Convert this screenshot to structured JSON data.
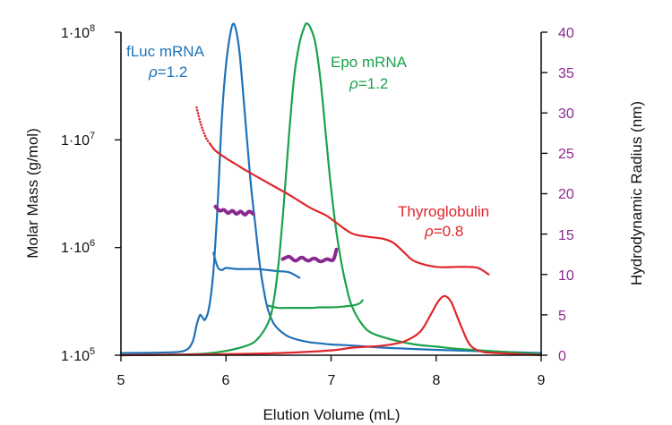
{
  "chart_data": {
    "type": "line",
    "title": "",
    "xlabel": "Elution Volume (mL)",
    "ylabel": "Molar Mass (g/mol)",
    "y2label": "Hydrodynamic Radius (nm)",
    "xlim": [
      5,
      9
    ],
    "ylim_log10": [
      5,
      8
    ],
    "y2lim": [
      0,
      40
    ],
    "x_ticks": [
      "5",
      "6",
      "7",
      "8",
      "9"
    ],
    "y_ticks": [
      {
        "base": "1·10",
        "exp": "5"
      },
      {
        "base": "1·10",
        "exp": "6"
      },
      {
        "base": "1·10",
        "exp": "7"
      },
      {
        "base": "1·10",
        "exp": "8"
      }
    ],
    "y2_ticks": [
      "0",
      "5",
      "10",
      "15",
      "20",
      "25",
      "30",
      "35",
      "40"
    ],
    "colors": {
      "fluc": "#1f72b8",
      "epo": "#1aa24b",
      "thyro": "#e0262b",
      "radius": "#8b2a8e",
      "axis": "#111111"
    },
    "annotations": {
      "fluc": {
        "name": "fLuc mRNA",
        "rho_symbol": "ρ",
        "rho_value": "=1.2"
      },
      "epo": {
        "name": "Epo mRNA",
        "rho_symbol": "ρ",
        "rho_value": "=1.2"
      },
      "thyro": {
        "name": "Thyroglobulin",
        "rho_symbol": "ρ",
        "rho_value": "=0.8"
      }
    },
    "series": [
      {
        "name": "fLuc mRNA detector signal",
        "axis": "y_left_log",
        "color_key": "fluc",
        "dotted": false,
        "x": [
          5.0,
          5.4,
          5.6,
          5.68,
          5.72,
          5.75,
          5.77,
          5.8,
          5.84,
          5.88,
          5.92,
          5.96,
          6.0,
          6.04,
          6.07,
          6.1,
          6.13,
          6.17,
          6.2,
          6.24,
          6.28,
          6.32,
          6.36,
          6.4,
          6.45,
          6.5,
          6.55,
          6.6,
          6.7,
          6.8,
          6.9,
          7.0,
          7.2,
          7.5,
          8.0,
          8.5,
          9.0
        ],
        "y": [
          5.02,
          5.025,
          5.04,
          5.12,
          5.28,
          5.37,
          5.36,
          5.33,
          5.45,
          5.78,
          6.4,
          7.2,
          7.7,
          7.98,
          8.08,
          8.0,
          7.8,
          7.35,
          7.0,
          6.55,
          6.2,
          5.85,
          5.6,
          5.42,
          5.3,
          5.24,
          5.2,
          5.17,
          5.14,
          5.12,
          5.11,
          5.1,
          5.09,
          5.07,
          5.05,
          5.035,
          5.02
        ]
      },
      {
        "name": "fLuc mRNA molar mass",
        "axis": "y_left_log",
        "color_key": "fluc",
        "dotted": false,
        "x": [
          5.88,
          5.92,
          5.96,
          6.0,
          6.1,
          6.2,
          6.3,
          6.4,
          6.5,
          6.6,
          6.7
        ],
        "y": [
          5.95,
          5.82,
          5.79,
          5.81,
          5.8,
          5.8,
          5.8,
          5.79,
          5.78,
          5.77,
          5.72
        ]
      },
      {
        "name": "Epo mRNA detector signal",
        "axis": "y_left_log",
        "color_key": "epo",
        "dotted": false,
        "x": [
          5.0,
          5.5,
          5.8,
          6.0,
          6.2,
          6.3,
          6.4,
          6.45,
          6.5,
          6.55,
          6.6,
          6.65,
          6.7,
          6.75,
          6.77,
          6.8,
          6.85,
          6.9,
          6.95,
          7.0,
          7.05,
          7.1,
          7.15,
          7.2,
          7.3,
          7.4,
          7.6,
          7.8,
          8.0,
          8.2,
          8.5,
          9.0
        ],
        "y": [
          5.0,
          5.005,
          5.015,
          5.04,
          5.09,
          5.15,
          5.3,
          5.48,
          5.85,
          6.4,
          7.05,
          7.6,
          7.9,
          8.06,
          8.08,
          8.05,
          7.9,
          7.55,
          7.05,
          6.55,
          6.15,
          5.85,
          5.62,
          5.45,
          5.28,
          5.2,
          5.14,
          5.1,
          5.08,
          5.06,
          5.04,
          5.01
        ]
      },
      {
        "name": "Epo mRNA molar mass",
        "axis": "y_left_log",
        "color_key": "epo",
        "dotted": false,
        "x": [
          6.4,
          6.5,
          6.6,
          6.7,
          6.8,
          6.9,
          7.0,
          7.1,
          7.2,
          7.27,
          7.3
        ],
        "y": [
          5.46,
          5.44,
          5.44,
          5.44,
          5.44,
          5.445,
          5.445,
          5.45,
          5.46,
          5.48,
          5.51
        ]
      },
      {
        "name": "Thyroglobulin detector signal",
        "axis": "y_left_log",
        "color_key": "thyro",
        "dotted": false,
        "x": [
          5.0,
          6.0,
          6.5,
          7.0,
          7.2,
          7.5,
          7.7,
          7.85,
          7.95,
          8.02,
          8.08,
          8.14,
          8.2,
          8.25,
          8.3,
          8.35,
          8.45,
          8.6,
          8.8,
          9.0
        ],
        "y": [
          5.0,
          5.01,
          5.02,
          5.045,
          5.07,
          5.09,
          5.13,
          5.22,
          5.38,
          5.5,
          5.55,
          5.5,
          5.36,
          5.24,
          5.13,
          5.07,
          5.03,
          5.02,
          5.01,
          5.0
        ]
      },
      {
        "name": "Thyroglobulin molar mass",
        "axis": "y_left_log",
        "color_key": "thyro",
        "dotted": false,
        "x": [
          5.85,
          5.9,
          6.0,
          6.1,
          6.2,
          6.4,
          6.6,
          6.8,
          6.95,
          7.05,
          7.2,
          7.35,
          7.5,
          7.6,
          7.7,
          7.8,
          8.0,
          8.2,
          8.3,
          8.4,
          8.5
        ],
        "y": [
          6.96,
          6.9,
          6.83,
          6.77,
          6.71,
          6.6,
          6.49,
          6.37,
          6.3,
          6.23,
          6.13,
          6.1,
          6.08,
          6.04,
          5.95,
          5.87,
          5.82,
          5.82,
          5.82,
          5.81,
          5.75
        ]
      },
      {
        "name": "Thyroglobulin molar mass (dotted start)",
        "axis": "y_left_log",
        "color_key": "thyro",
        "dotted": true,
        "x": [
          5.72,
          5.74,
          5.76,
          5.78,
          5.8,
          5.82,
          5.85
        ],
        "y": [
          7.3,
          7.22,
          7.15,
          7.09,
          7.04,
          7.0,
          6.96
        ]
      },
      {
        "name": "fLuc mRNA hydrodynamic radius",
        "axis": "y_right",
        "color_key": "radius",
        "dotted": false,
        "x": [
          5.9,
          5.94,
          5.98,
          6.02,
          6.06,
          6.1,
          6.14,
          6.18,
          6.22,
          6.26
        ],
        "y": [
          18.4,
          17.9,
          18.0,
          17.6,
          17.9,
          17.5,
          17.8,
          17.4,
          17.8,
          17.5
        ]
      },
      {
        "name": "Epo mRNA hydrodynamic radius",
        "axis": "y_right",
        "color_key": "radius",
        "dotted": false,
        "x": [
          6.54,
          6.6,
          6.66,
          6.72,
          6.78,
          6.84,
          6.9,
          6.96,
          7.02,
          7.05
        ],
        "y": [
          11.9,
          12.2,
          11.7,
          12.1,
          11.7,
          12.0,
          11.6,
          11.9,
          11.8,
          13.1
        ]
      }
    ]
  }
}
